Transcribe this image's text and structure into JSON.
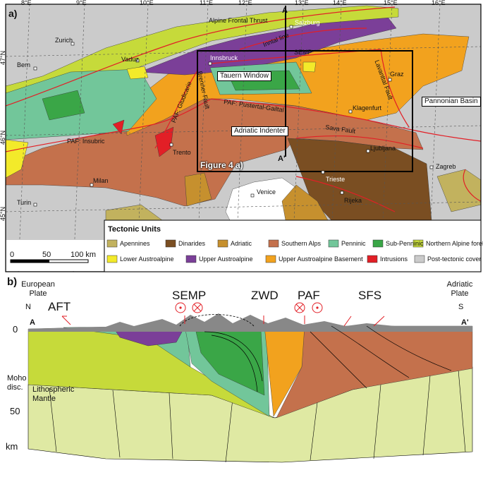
{
  "panel_a": {
    "label": "a)",
    "longitudes": [
      "8°E",
      "9°E",
      "10°E",
      "11°E",
      "12°E",
      "13°E",
      "14°E",
      "15°E",
      "16°E"
    ],
    "latitudes": [
      "47°N",
      "46°N",
      "45°N"
    ],
    "places": [
      "Zurich",
      "Bern",
      "Vaduz",
      "Innsbruck",
      "Salzburg",
      "Graz",
      "Klagenfurt",
      "Ljubljana",
      "Zagreb",
      "Trieste",
      "Rijeka",
      "Venice",
      "Milan",
      "Turin",
      "Trento"
    ],
    "structures": [
      "Alpine Frontal Thrust",
      "Inntal line",
      "SEMP",
      "Lavanttal Fault",
      "Tauern Window",
      "Brenner Fault",
      "PAF: Giudicarie",
      "PAF: Pustertal-Gailtal",
      "Sava Fault",
      "PAF: Insubric",
      "Adriatic Indenter",
      "Pannonian Basin"
    ],
    "inset_label": "Figure 4 a)",
    "section_ends": [
      "A",
      "A'"
    ],
    "scale_bar": [
      "0",
      "50",
      "100 km"
    ],
    "legend": {
      "title": "Tectonic Units",
      "items": [
        {
          "label": "Apennines",
          "color": "#c2b25e"
        },
        {
          "label": "Dinarides",
          "color": "#7a4e22"
        },
        {
          "label": "Adriatic",
          "color": "#c6902e"
        },
        {
          "label": "Southern Alps",
          "color": "#c4714c"
        },
        {
          "label": "Penninic",
          "color": "#72c69a"
        },
        {
          "label": "Sub-Penninic",
          "color": "#3aa647"
        },
        {
          "label": "Northern Alpine foreland",
          "color": "#c6da3a"
        },
        {
          "label": "Lower Austroalpine",
          "color": "#f3ea2a"
        },
        {
          "label": "Upper Austroalpine",
          "color": "#7b3f98"
        },
        {
          "label": "Upper Austroalpine Basement",
          "color": "#f2a21e"
        },
        {
          "label": "Intrusions",
          "color": "#e21f26"
        },
        {
          "label": "Post-tectonic cover",
          "color": "#cbcbcb"
        }
      ]
    }
  },
  "panel_b": {
    "label": "b)",
    "plates": [
      "European Plate",
      "Adriatic Plate"
    ],
    "directions": [
      "N",
      "S"
    ],
    "structures": [
      "AFT",
      "SEMP",
      "ZWD",
      "PAF",
      "SFS"
    ],
    "section_ends": [
      "A",
      "A'"
    ],
    "depth_labels": [
      "0",
      "Moho disc.",
      "50",
      "km"
    ],
    "mantle_label": "Lithospheric Mantle",
    "mantle_color": "#dfe9a3"
  }
}
